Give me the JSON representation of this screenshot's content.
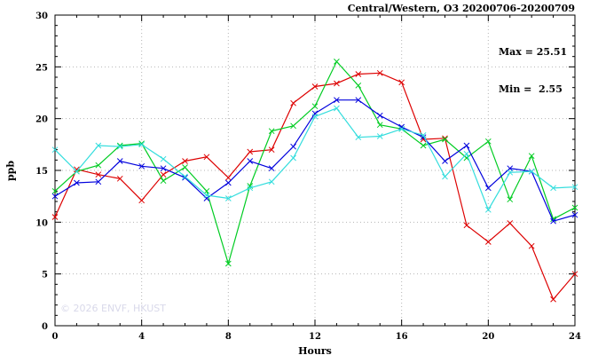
{
  "header": {
    "title": "Central/Western, O3 20200706-20200709"
  },
  "annotation": {
    "max_label": "Max = 25.51",
    "min_label": "Min =  2.55"
  },
  "watermark": "© 2026 ENVF, HKUST",
  "chart_data": {
    "type": "line",
    "title": "Central/Western, O3 20200706-20200709",
    "xlabel": "Hours",
    "ylabel": "ppb",
    "xlim": [
      0,
      24
    ],
    "ylim": [
      0,
      30
    ],
    "xticks": [
      0,
      4,
      8,
      12,
      16,
      20,
      24
    ],
    "yticks": [
      0,
      5,
      10,
      15,
      20,
      25,
      30
    ],
    "x_minor_step": 1,
    "y_minor_step": 1,
    "grid": true,
    "legend": "none",
    "max_value": 25.51,
    "min_value": 2.55,
    "x": [
      0,
      1,
      2,
      3,
      4,
      5,
      6,
      7,
      8,
      9,
      10,
      11,
      12,
      13,
      14,
      15,
      16,
      17,
      18,
      19,
      20,
      21,
      22,
      23,
      24
    ],
    "series": [
      {
        "name": "series-red",
        "color": "#dd0000",
        "values": [
          10.5,
          15.1,
          14.6,
          14.2,
          12.1,
          14.6,
          15.9,
          16.3,
          14.3,
          16.8,
          17.0,
          21.5,
          23.1,
          23.4,
          24.3,
          24.4,
          23.5,
          18.0,
          18.1,
          9.7,
          8.1,
          9.9,
          7.7,
          2.55,
          5.0
        ]
      },
      {
        "name": "series-green",
        "color": "#00cc22",
        "values": [
          13.0,
          14.9,
          15.5,
          17.4,
          17.6,
          14.0,
          15.3,
          13.0,
          6.0,
          13.5,
          18.8,
          19.3,
          21.2,
          25.51,
          23.2,
          19.4,
          19.0,
          17.4,
          18.0,
          16.2,
          17.8,
          12.2,
          16.4,
          10.3,
          11.4
        ]
      },
      {
        "name": "series-blue",
        "color": "#0000dd",
        "values": [
          12.5,
          13.8,
          13.9,
          15.9,
          15.4,
          15.2,
          14.3,
          12.3,
          13.8,
          15.9,
          15.2,
          17.3,
          20.5,
          21.8,
          21.8,
          20.3,
          19.2,
          18.2,
          15.9,
          17.4,
          13.3,
          15.2,
          14.9,
          10.1,
          10.7
        ]
      },
      {
        "name": "series-cyan",
        "color": "#33dddd",
        "values": [
          17.0,
          14.9,
          17.4,
          17.3,
          17.5,
          16.1,
          14.4,
          12.6,
          12.3,
          13.3,
          13.9,
          16.2,
          20.2,
          21.0,
          18.2,
          18.3,
          19.0,
          18.4,
          14.4,
          16.6,
          11.2,
          14.8,
          14.9,
          13.3,
          13.4
        ]
      }
    ]
  }
}
